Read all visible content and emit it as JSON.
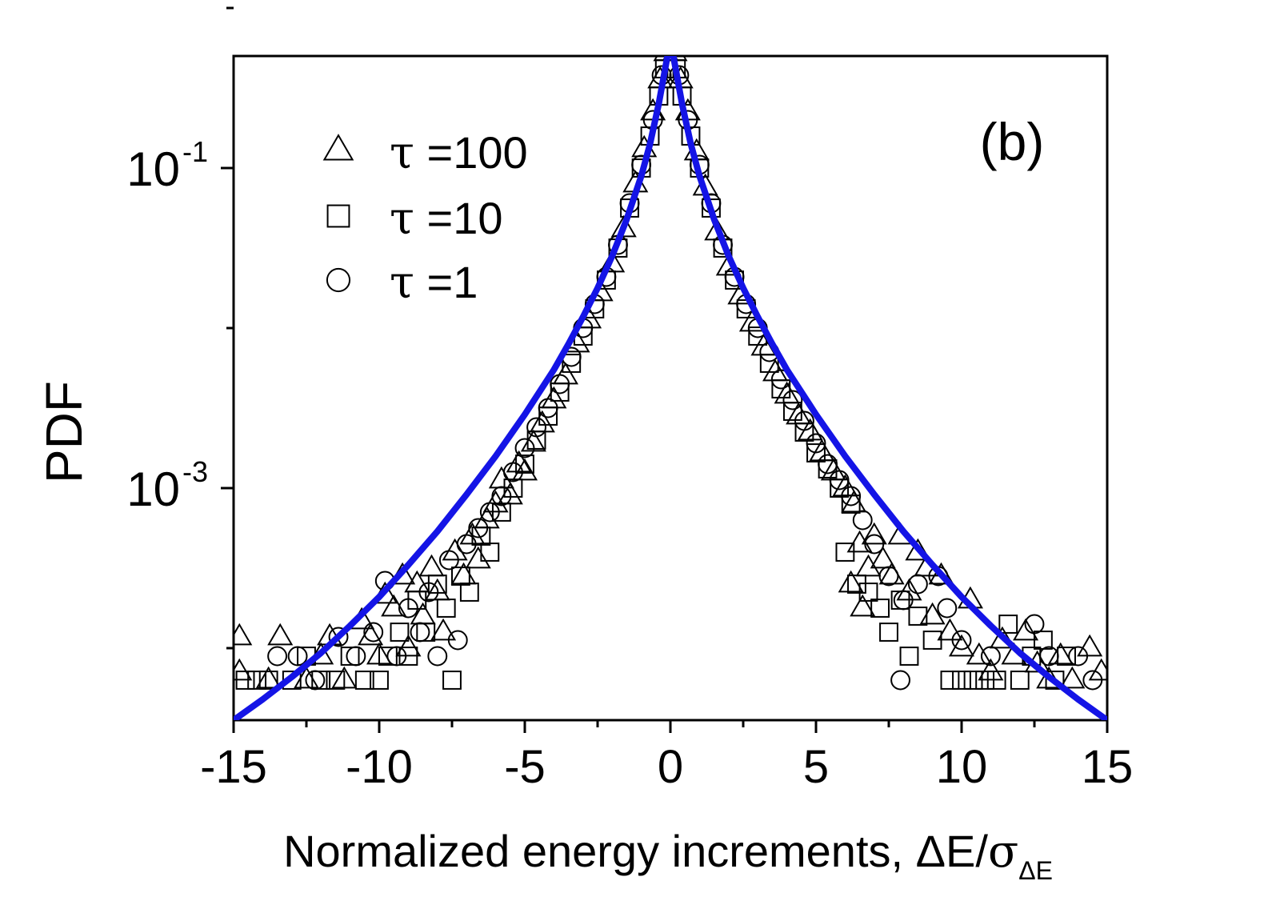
{
  "chart_data": {
    "type": "scatter",
    "panel_label": "(b)",
    "xlabel": {
      "main": "Normalized energy increments, ",
      "delta_e": "ΔE/",
      "sigma": "σ",
      "subscript": "ΔE"
    },
    "ylabel": "PDF",
    "xlim": [
      -15,
      15
    ],
    "ylim_log10": [
      -4.45,
      -0.3
    ],
    "x_scale": "linear",
    "y_scale": "log",
    "x_ticks": [
      {
        "value": -15,
        "label": "-15"
      },
      {
        "value": -10,
        "label": "-10"
      },
      {
        "value": -5,
        "label": "-5"
      },
      {
        "value": 0,
        "label": "0"
      },
      {
        "value": 5,
        "label": "5"
      },
      {
        "value": 10,
        "label": "10"
      },
      {
        "value": 15,
        "label": "15"
      }
    ],
    "y_major_ticks": [
      {
        "log10": -1,
        "base": "10",
        "exp": "-1"
      },
      {
        "log10": -3,
        "base": "10",
        "exp": "-3"
      }
    ],
    "y_minor_ticks_log10": [
      0,
      -2,
      -4
    ],
    "legend": [
      {
        "marker": "triangle",
        "tau": "τ",
        "label": " =100"
      },
      {
        "marker": "square",
        "tau": "τ",
        "label": " =10"
      },
      {
        "marker": "circle",
        "tau": "τ",
        "label": " =1"
      }
    ],
    "series": [
      {
        "name": "τ =100",
        "marker": "triangle",
        "points": [
          [
            -14.8,
            -3.93
          ],
          [
            -14.8,
            -4.15
          ],
          [
            -13.8,
            -4.2
          ],
          [
            -13.4,
            -3.93
          ],
          [
            -12.5,
            -4.2
          ],
          [
            -12.0,
            -4.05
          ],
          [
            -11.7,
            -3.93
          ],
          [
            -11.2,
            -4.2
          ],
          [
            -10.6,
            -3.83
          ],
          [
            -10.3,
            -3.93
          ],
          [
            -10.0,
            -4.05
          ],
          [
            -9.8,
            -3.67
          ],
          [
            -9.5,
            -3.75
          ],
          [
            -9.2,
            -3.55
          ],
          [
            -9.0,
            -4.0
          ],
          [
            -8.7,
            -3.6
          ],
          [
            -8.5,
            -3.8
          ],
          [
            -8.2,
            -3.5
          ],
          [
            -8.0,
            -3.65
          ],
          [
            -7.8,
            -3.9
          ],
          [
            -7.4,
            -3.4
          ],
          [
            -7.1,
            -3.55
          ],
          [
            -6.8,
            -3.3
          ],
          [
            -6.6,
            -3.45
          ],
          [
            -6.3,
            -3.2
          ],
          [
            -6.0,
            -3.1
          ],
          [
            -5.8,
            -2.95
          ],
          [
            -5.5,
            -3.05
          ],
          [
            -5.2,
            -2.85
          ],
          [
            -5.0,
            -2.9
          ],
          [
            -4.7,
            -2.72
          ],
          [
            -4.4,
            -2.6
          ],
          [
            -4.0,
            -2.45
          ],
          [
            -3.6,
            -2.3
          ],
          [
            -3.2,
            -2.1
          ],
          [
            -2.8,
            -1.95
          ],
          [
            -2.4,
            -1.78
          ],
          [
            -2.0,
            -1.6
          ],
          [
            -1.6,
            -1.38
          ],
          [
            -1.2,
            -1.1
          ],
          [
            -0.9,
            -0.88
          ],
          [
            -0.6,
            -0.65
          ],
          [
            -0.35,
            -0.45
          ],
          [
            -0.15,
            -0.28
          ],
          [
            0.0,
            -0.18
          ],
          [
            0.15,
            -0.28
          ],
          [
            0.35,
            -0.45
          ],
          [
            0.6,
            -0.65
          ],
          [
            0.9,
            -0.9
          ],
          [
            1.2,
            -1.12
          ],
          [
            1.6,
            -1.4
          ],
          [
            2.0,
            -1.62
          ],
          [
            2.4,
            -1.8
          ],
          [
            2.8,
            -1.97
          ],
          [
            3.2,
            -2.12
          ],
          [
            3.6,
            -2.28
          ],
          [
            4.0,
            -2.42
          ],
          [
            4.4,
            -2.55
          ],
          [
            4.8,
            -2.65
          ],
          [
            5.2,
            -2.78
          ],
          [
            5.6,
            -2.9
          ],
          [
            6.0,
            -3.0
          ],
          [
            6.3,
            -3.1
          ],
          [
            6.5,
            -3.35
          ],
          [
            6.2,
            -3.6
          ],
          [
            6.6,
            -3.75
          ],
          [
            6.8,
            -3.5
          ],
          [
            7.0,
            -3.3
          ],
          [
            7.3,
            -3.45
          ],
          [
            7.6,
            -3.55
          ],
          [
            7.9,
            -3.3
          ],
          [
            8.2,
            -3.65
          ],
          [
            8.5,
            -3.4
          ],
          [
            8.8,
            -3.5
          ],
          [
            9.0,
            -3.8
          ],
          [
            9.3,
            -3.55
          ],
          [
            9.6,
            -3.9
          ],
          [
            10.0,
            -4.0
          ],
          [
            10.3,
            -3.7
          ],
          [
            10.6,
            -4.05
          ],
          [
            11.0,
            -4.15
          ],
          [
            11.4,
            -3.95
          ],
          [
            11.8,
            -4.05
          ],
          [
            12.2,
            -3.9
          ],
          [
            12.6,
            -4.1
          ],
          [
            13.0,
            -4.2
          ],
          [
            13.4,
            -4.05
          ],
          [
            13.8,
            -4.2
          ],
          [
            14.4,
            -4.0
          ],
          [
            14.8,
            -4.15
          ]
        ]
      },
      {
        "name": "τ =10",
        "marker": "square",
        "points": [
          [
            -14.6,
            -4.2
          ],
          [
            -14.2,
            -4.2
          ],
          [
            -13.8,
            -4.2
          ],
          [
            -13.0,
            -4.2
          ],
          [
            -12.5,
            -4.05
          ],
          [
            -12.0,
            -4.2
          ],
          [
            -11.5,
            -4.2
          ],
          [
            -11.0,
            -4.05
          ],
          [
            -10.5,
            -4.2
          ],
          [
            -10.0,
            -4.2
          ],
          [
            -9.7,
            -4.05
          ],
          [
            -9.3,
            -3.9
          ],
          [
            -9.0,
            -4.05
          ],
          [
            -8.7,
            -3.7
          ],
          [
            -8.4,
            -3.9
          ],
          [
            -8.0,
            -3.6
          ],
          [
            -7.7,
            -3.75
          ],
          [
            -7.5,
            -4.2
          ],
          [
            -7.2,
            -3.55
          ],
          [
            -6.9,
            -3.65
          ],
          [
            -6.5,
            -3.3
          ],
          [
            -6.2,
            -3.4
          ],
          [
            -5.8,
            -3.15
          ],
          [
            -5.4,
            -3.0
          ],
          [
            -5.0,
            -2.85
          ],
          [
            -4.6,
            -2.7
          ],
          [
            -4.2,
            -2.55
          ],
          [
            -3.8,
            -2.4
          ],
          [
            -3.4,
            -2.22
          ],
          [
            -3.0,
            -2.05
          ],
          [
            -2.6,
            -1.88
          ],
          [
            -2.2,
            -1.7
          ],
          [
            -1.8,
            -1.5
          ],
          [
            -1.4,
            -1.25
          ],
          [
            -1.0,
            -1.0
          ],
          [
            -0.7,
            -0.8
          ],
          [
            -0.4,
            -0.55
          ],
          [
            -0.2,
            -0.38
          ],
          [
            0.2,
            -0.38
          ],
          [
            0.4,
            -0.55
          ],
          [
            0.7,
            -0.8
          ],
          [
            1.0,
            -1.0
          ],
          [
            1.4,
            -1.25
          ],
          [
            1.8,
            -1.5
          ],
          [
            2.2,
            -1.7
          ],
          [
            2.6,
            -1.88
          ],
          [
            3.0,
            -2.05
          ],
          [
            3.4,
            -2.22
          ],
          [
            3.8,
            -2.38
          ],
          [
            4.2,
            -2.52
          ],
          [
            4.6,
            -2.65
          ],
          [
            5.0,
            -2.78
          ],
          [
            5.4,
            -2.88
          ],
          [
            5.8,
            -3.0
          ],
          [
            6.2,
            -3.1
          ],
          [
            6.0,
            -3.4
          ],
          [
            6.4,
            -3.6
          ],
          [
            6.8,
            -3.65
          ],
          [
            7.2,
            -3.75
          ],
          [
            7.5,
            -3.9
          ],
          [
            7.9,
            -3.7
          ],
          [
            8.2,
            -4.05
          ],
          [
            8.5,
            -3.8
          ],
          [
            9.0,
            -3.95
          ],
          [
            9.6,
            -4.2
          ],
          [
            10.0,
            -4.2
          ],
          [
            10.4,
            -4.2
          ],
          [
            10.8,
            -4.2
          ],
          [
            11.2,
            -4.2
          ],
          [
            11.6,
            -3.85
          ],
          [
            12.0,
            -4.2
          ],
          [
            12.4,
            -4.05
          ],
          [
            12.8,
            -3.95
          ],
          [
            13.2,
            -4.2
          ],
          [
            13.6,
            -4.05
          ]
        ]
      },
      {
        "name": "τ =1",
        "marker": "circle",
        "points": [
          [
            -13.5,
            -4.05
          ],
          [
            -12.8,
            -4.05
          ],
          [
            -12.2,
            -4.2
          ],
          [
            -11.4,
            -3.93
          ],
          [
            -10.8,
            -4.05
          ],
          [
            -10.2,
            -3.9
          ],
          [
            -9.8,
            -3.58
          ],
          [
            -9.4,
            -4.05
          ],
          [
            -9.0,
            -3.75
          ],
          [
            -8.6,
            -3.9
          ],
          [
            -8.3,
            -3.65
          ],
          [
            -8.0,
            -4.05
          ],
          [
            -7.6,
            -3.45
          ],
          [
            -7.3,
            -3.95
          ],
          [
            -7.0,
            -3.35
          ],
          [
            -6.6,
            -3.25
          ],
          [
            -6.2,
            -3.15
          ],
          [
            -5.8,
            -3.05
          ],
          [
            -5.4,
            -2.9
          ],
          [
            -5.0,
            -2.75
          ],
          [
            -4.6,
            -2.62
          ],
          [
            -4.2,
            -2.5
          ],
          [
            -3.8,
            -2.35
          ],
          [
            -3.4,
            -2.18
          ],
          [
            -3.0,
            -2.0
          ],
          [
            -2.6,
            -1.85
          ],
          [
            -2.2,
            -1.68
          ],
          [
            -1.8,
            -1.48
          ],
          [
            -1.4,
            -1.22
          ],
          [
            -1.0,
            -0.98
          ],
          [
            -0.6,
            -0.7
          ],
          [
            -0.3,
            -0.42
          ],
          [
            0.3,
            -0.42
          ],
          [
            0.6,
            -0.7
          ],
          [
            1.0,
            -0.98
          ],
          [
            1.4,
            -1.22
          ],
          [
            1.8,
            -1.48
          ],
          [
            2.2,
            -1.68
          ],
          [
            2.6,
            -1.85
          ],
          [
            3.0,
            -2.0
          ],
          [
            3.4,
            -2.15
          ],
          [
            3.8,
            -2.32
          ],
          [
            4.2,
            -2.45
          ],
          [
            4.6,
            -2.58
          ],
          [
            5.0,
            -2.72
          ],
          [
            5.4,
            -2.85
          ],
          [
            5.8,
            -2.95
          ],
          [
            6.2,
            -3.05
          ],
          [
            6.6,
            -3.2
          ],
          [
            7.0,
            -3.35
          ],
          [
            7.5,
            -3.55
          ],
          [
            8.0,
            -3.7
          ],
          [
            8.5,
            -3.6
          ],
          [
            9.2,
            -3.55
          ],
          [
            7.9,
            -4.2
          ],
          [
            9.5,
            -3.75
          ],
          [
            10.0,
            -3.95
          ],
          [
            11.0,
            -4.05
          ],
          [
            12.5,
            -3.85
          ],
          [
            13.0,
            -4.05
          ],
          [
            14.0,
            -4.05
          ],
          [
            14.5,
            -4.2
          ]
        ]
      }
    ],
    "fit_curve": {
      "color": "#1414e6",
      "description": "model PDF",
      "points": [
        [
          -15,
          -4.45
        ],
        [
          -14,
          -4.32
        ],
        [
          -13,
          -4.18
        ],
        [
          -12,
          -4.03
        ],
        [
          -11,
          -3.86
        ],
        [
          -10,
          -3.68
        ],
        [
          -9,
          -3.48
        ],
        [
          -8,
          -3.27
        ],
        [
          -7,
          -3.04
        ],
        [
          -6,
          -2.8
        ],
        [
          -5,
          -2.54
        ],
        [
          -4,
          -2.26
        ],
        [
          -3.5,
          -2.1
        ],
        [
          -3,
          -1.93
        ],
        [
          -2.5,
          -1.75
        ],
        [
          -2,
          -1.55
        ],
        [
          -1.5,
          -1.32
        ],
        [
          -1,
          -1.05
        ],
        [
          -0.7,
          -0.85
        ],
        [
          -0.4,
          -0.6
        ],
        [
          -0.2,
          -0.4
        ],
        [
          0,
          -0.2
        ],
        [
          0.2,
          -0.4
        ],
        [
          0.4,
          -0.6
        ],
        [
          0.7,
          -0.85
        ],
        [
          1,
          -1.05
        ],
        [
          1.5,
          -1.32
        ],
        [
          2,
          -1.55
        ],
        [
          2.5,
          -1.75
        ],
        [
          3,
          -1.93
        ],
        [
          3.5,
          -2.1
        ],
        [
          4,
          -2.26
        ],
        [
          5,
          -2.54
        ],
        [
          6,
          -2.8
        ],
        [
          7,
          -3.04
        ],
        [
          8,
          -3.27
        ],
        [
          9,
          -3.48
        ],
        [
          10,
          -3.68
        ],
        [
          11,
          -3.86
        ],
        [
          12,
          -4.03
        ],
        [
          13,
          -4.18
        ],
        [
          14,
          -4.32
        ],
        [
          15,
          -4.45
        ]
      ]
    }
  }
}
